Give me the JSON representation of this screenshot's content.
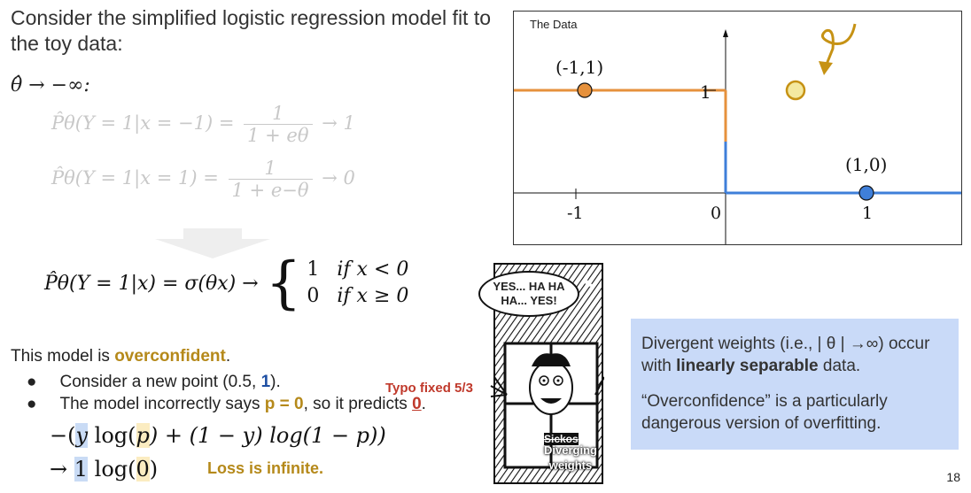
{
  "intro": "Consider the simplified logistic regression model fit to the toy data:",
  "theta_limit": "θ̂ → −∞:",
  "eq1": {
    "lhs": "P̂θ(Y = 1|x = −1) =",
    "num": "1",
    "den": "1 + eθ",
    "rhs": "→ 1"
  },
  "eq2": {
    "lhs": "P̂θ(Y = 1|x = 1) =",
    "num": "1",
    "den": "1 + e−θ",
    "rhs": "→ 0"
  },
  "piecewise": {
    "lhs": "P̂θ(Y = 1|x) = σ(θx) →",
    "case1_val": "1",
    "case1_cond": "if x < 0",
    "case2_val": "0",
    "case2_cond": "if x ≥ 0"
  },
  "overconf": {
    "prefix": "This model is ",
    "word": "overconfident",
    "suffix": "."
  },
  "bullets": {
    "b1_pre": "Consider a new point (0.5, ",
    "b1_num": "1",
    "b1_post": ").",
    "b2_pre": "The model incorrectly says ",
    "b2_p": "p = 0",
    "b2_mid": ", so it predicts ",
    "b2_zero": "0",
    "b2_post": "."
  },
  "typo_note": "Typo fixed 5/3",
  "loss_line1": {
    "pre": "−(",
    "y": "y",
    "mid1": " log(",
    "p": "p",
    "mid2": ") + (1 − y) log(1 − p))"
  },
  "loss_line2": {
    "pre": "→ ",
    "one": "1",
    "mid": " log(",
    "zero": "0",
    "post": ")"
  },
  "loss_note": "Loss is infinite.",
  "comic": {
    "speech": "YES... HA HA HA... YES!",
    "crossed": "Sickos",
    "caption": "Diverging weights"
  },
  "bluebox": {
    "p1_pre": "Divergent weights (i.e., | θ | →∞) occur with ",
    "p1_bold": "linearly separable",
    "p1_post": " data.",
    "p2": "“Overconfidence” is a particularly dangerous version of overfitting."
  },
  "plot": {
    "title": "The Data",
    "label_left": "(-1,1)",
    "label_right": "(1,0)",
    "ytick": "1",
    "xtick_neg": "-1",
    "xtick_zero": "0",
    "xtick_pos": "1"
  },
  "chart_data": {
    "type": "scatter",
    "title": "The Data",
    "points": [
      {
        "x": -1,
        "y": 1,
        "label": "(-1,1)",
        "color": "#e6913c"
      },
      {
        "x": 1,
        "y": 0,
        "label": "(1,0)",
        "color": "#3f7fd9"
      }
    ],
    "new_point": {
      "color": "#f4e9a0"
    },
    "step_function": [
      {
        "x_range": [
          -1.4,
          0
        ],
        "y": 1,
        "color": "#e6913c"
      },
      {
        "x_range": [
          0,
          1.4
        ],
        "y": 0,
        "color": "#3f7fd9"
      }
    ],
    "ylim": [
      0,
      1
    ],
    "xticks": [
      -1,
      0,
      1
    ]
  },
  "page_number": "18",
  "colors": {
    "orange": "#e6913c",
    "blue": "#3f7fd9",
    "gold": "#b5891a",
    "box": "#c9daf8"
  }
}
